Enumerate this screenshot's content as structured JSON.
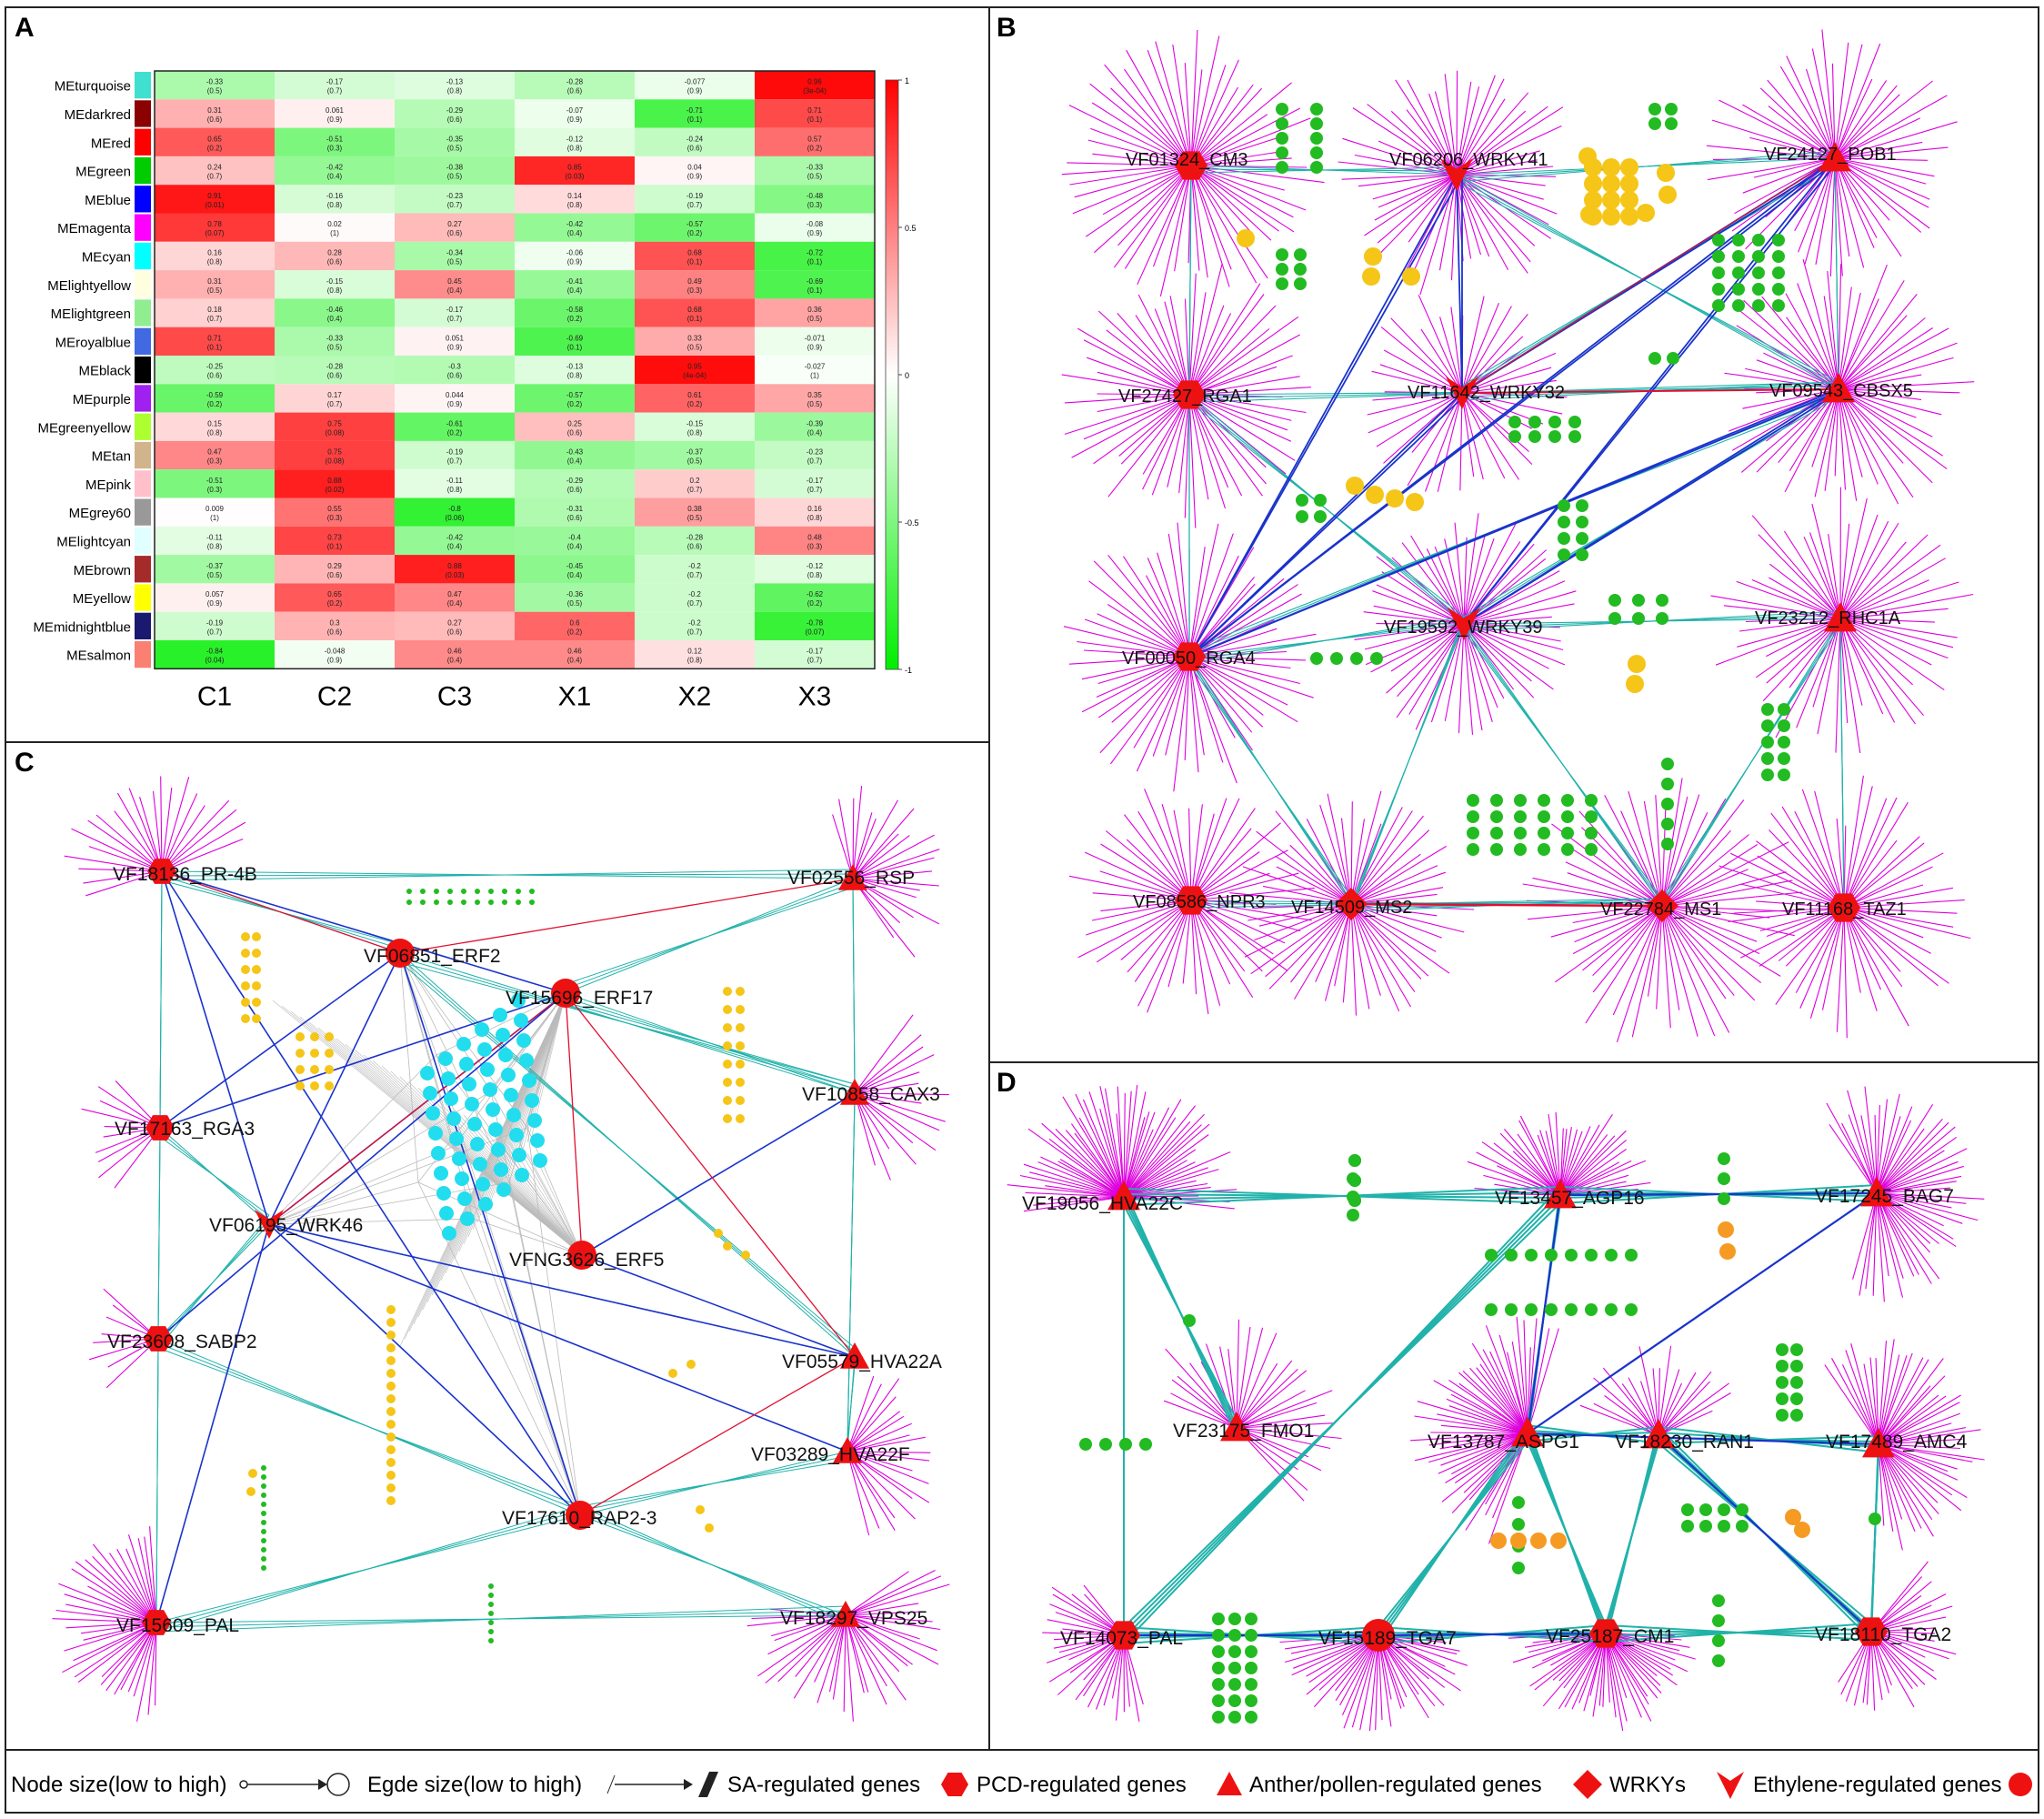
{
  "panels": {
    "A": {
      "letter": "A"
    },
    "B": {
      "letter": "B"
    },
    "C": {
      "letter": "C"
    },
    "D": {
      "letter": "D"
    }
  },
  "heatmap": {
    "rows": [
      "MEturquoise",
      "MEdarkred",
      "MEred",
      "MEgreen",
      "MEblue",
      "MEmagenta",
      "MEcyan",
      "MElightyellow",
      "MElightgreen",
      "MEroyalblue",
      "MEblack",
      "MEpurple",
      "MEgreenyellow",
      "MEtan",
      "MEpink",
      "MEgrey60",
      "MElightcyan",
      "MEbrown",
      "MEyellow",
      "MEmidnightblue",
      "MEsalmon"
    ],
    "row_colors": [
      "#40e0d0",
      "#8b0000",
      "#ff0000",
      "#00cc00",
      "#0000ff",
      "#ff00ff",
      "#00ffff",
      "#ffffe0",
      "#90ee90",
      "#4169e1",
      "#000000",
      "#a020f0",
      "#adff2f",
      "#d2b48c",
      "#ffc0cb",
      "#999999",
      "#e0ffff",
      "#a52a2a",
      "#ffff00",
      "#191970",
      "#fa8072"
    ],
    "columns": [
      "C1",
      "C2",
      "C3",
      "X1",
      "X2",
      "X3"
    ],
    "values": [
      [
        -0.33,
        -0.17,
        -0.13,
        -0.28,
        -0.077,
        0.96
      ],
      [
        0.31,
        0.061,
        -0.29,
        -0.07,
        -0.71,
        0.71
      ],
      [
        0.65,
        -0.51,
        -0.35,
        -0.12,
        -0.24,
        0.57
      ],
      [
        0.24,
        -0.42,
        -0.38,
        0.85,
        0.04,
        -0.33
      ],
      [
        0.91,
        -0.16,
        -0.23,
        0.14,
        -0.19,
        -0.48
      ],
      [
        0.78,
        0.02,
        0.27,
        -0.42,
        -0.57,
        -0.08
      ],
      [
        0.16,
        0.28,
        -0.34,
        -0.06,
        0.68,
        -0.72
      ],
      [
        0.31,
        -0.15,
        0.45,
        -0.41,
        0.49,
        -0.69
      ],
      [
        0.18,
        -0.46,
        -0.17,
        -0.58,
        0.68,
        0.36
      ],
      [
        0.71,
        -0.33,
        0.051,
        -0.69,
        0.33,
        -0.071
      ],
      [
        -0.25,
        -0.28,
        -0.3,
        -0.13,
        0.95,
        -0.027
      ],
      [
        -0.59,
        0.17,
        0.044,
        -0.57,
        0.61,
        0.35
      ],
      [
        0.15,
        0.75,
        -0.61,
        0.25,
        -0.15,
        -0.39
      ],
      [
        0.47,
        0.75,
        -0.19,
        -0.43,
        -0.37,
        -0.23
      ],
      [
        -0.51,
        0.88,
        -0.11,
        -0.29,
        0.2,
        -0.17
      ],
      [
        0.009,
        0.55,
        -0.8,
        -0.31,
        0.38,
        0.16
      ],
      [
        -0.11,
        0.73,
        -0.42,
        -0.4,
        -0.28,
        0.48
      ],
      [
        -0.37,
        0.29,
        0.88,
        -0.45,
        -0.2,
        -0.12
      ],
      [
        0.057,
        0.65,
        0.47,
        -0.36,
        -0.2,
        -0.62
      ],
      [
        -0.19,
        0.3,
        0.27,
        0.6,
        -0.2,
        -0.78
      ],
      [
        -0.84,
        -0.048,
        0.46,
        0.46,
        0.12,
        -0.17
      ]
    ],
    "pvalues": [
      [
        "(0.5)",
        "(0.7)",
        "(0.8)",
        "(0.6)",
        "(0.9)",
        "(3e-04)"
      ],
      [
        "(0.6)",
        "(0.9)",
        "(0.6)",
        "(0.9)",
        "(0.1)",
        "(0.1)"
      ],
      [
        "(0.2)",
        "(0.3)",
        "(0.5)",
        "(0.8)",
        "(0.6)",
        "(0.2)"
      ],
      [
        "(0.7)",
        "(0.4)",
        "(0.5)",
        "(0.03)",
        "(0.9)",
        "(0.5)"
      ],
      [
        "(0.01)",
        "(0.8)",
        "(0.7)",
        "(0.8)",
        "(0.7)",
        "(0.3)"
      ],
      [
        "(0.07)",
        "(1)",
        "(0.6)",
        "(0.4)",
        "(0.2)",
        "(0.9)"
      ],
      [
        "(0.8)",
        "(0.6)",
        "(0.5)",
        "(0.9)",
        "(0.1)",
        "(0.1)"
      ],
      [
        "(0.5)",
        "(0.8)",
        "(0.4)",
        "(0.4)",
        "(0.3)",
        "(0.1)"
      ],
      [
        "(0.7)",
        "(0.4)",
        "(0.7)",
        "(0.2)",
        "(0.1)",
        "(0.5)"
      ],
      [
        "(0.1)",
        "(0.5)",
        "(0.9)",
        "(0.1)",
        "(0.5)",
        "(0.9)"
      ],
      [
        "(0.6)",
        "(0.6)",
        "(0.6)",
        "(0.8)",
        "(4e-04)",
        "(1)"
      ],
      [
        "(0.2)",
        "(0.7)",
        "(0.9)",
        "(0.2)",
        "(0.2)",
        "(0.5)"
      ],
      [
        "(0.8)",
        "(0.08)",
        "(0.2)",
        "(0.6)",
        "(0.8)",
        "(0.4)"
      ],
      [
        "(0.3)",
        "(0.08)",
        "(0.7)",
        "(0.4)",
        "(0.5)",
        "(0.7)"
      ],
      [
        "(0.3)",
        "(0.02)",
        "(0.8)",
        "(0.6)",
        "(0.7)",
        "(0.7)"
      ],
      [
        "(1)",
        "(0.3)",
        "(0.06)",
        "(0.6)",
        "(0.5)",
        "(0.8)"
      ],
      [
        "(0.8)",
        "(0.1)",
        "(0.4)",
        "(0.4)",
        "(0.6)",
        "(0.3)"
      ],
      [
        "(0.5)",
        "(0.6)",
        "(0.03)",
        "(0.4)",
        "(0.7)",
        "(0.8)"
      ],
      [
        "(0.9)",
        "(0.2)",
        "(0.4)",
        "(0.5)",
        "(0.7)",
        "(0.2)"
      ],
      [
        "(0.7)",
        "(0.6)",
        "(0.6)",
        "(0.2)",
        "(0.7)",
        "(0.07)"
      ],
      [
        "(0.04)",
        "(0.9)",
        "(0.4)",
        "(0.4)",
        "(0.8)",
        "(0.7)"
      ]
    ],
    "legend_ticks": [
      "1",
      "0.5",
      "0",
      "-0.5",
      "-1"
    ],
    "colors": {
      "high": "#ff0000",
      "mid": "#ffffff",
      "low": "#00ee00"
    }
  },
  "networks": {
    "B": {
      "hubs": [
        {
          "label": "VF01324_CM3",
          "shape": "hexagon"
        },
        {
          "label": "VF06206_WRKY41",
          "shape": "vee"
        },
        {
          "label": "VF24127_POB1",
          "shape": "triangle"
        },
        {
          "label": "VF27427_RGA1",
          "shape": "hexagon"
        },
        {
          "label": "VF11642_WRKY32",
          "shape": "vee"
        },
        {
          "label": "VF09543_CBSX5",
          "shape": "triangle"
        },
        {
          "label": "VF00050_RGA4",
          "shape": "hexagon"
        },
        {
          "label": "VF19592_WRKY39",
          "shape": "vee"
        },
        {
          "label": "VF23212_RHC1A",
          "shape": "triangle"
        },
        {
          "label": "VF08586_NPR3",
          "shape": "hexagon"
        },
        {
          "label": "VF14509_MS2",
          "shape": "diamond"
        },
        {
          "label": "VF22784_MS1",
          "shape": "diamond"
        },
        {
          "label": "VF11168_TAZ1",
          "shape": "hexagon"
        }
      ]
    },
    "C": {
      "hubs": [
        {
          "label": "VF18136_PR-4B",
          "shape": "hexagon"
        },
        {
          "label": "VF02556_RSP",
          "shape": "triangle"
        },
        {
          "label": "VF06851_ERF2",
          "shape": "circle"
        },
        {
          "label": "VF15696_ERF17",
          "shape": "circle"
        },
        {
          "label": "VF10858_CAX3",
          "shape": "triangle"
        },
        {
          "label": "VF17163_RGA3",
          "shape": "hexagon"
        },
        {
          "label": "VF06195_WRK46",
          "shape": "vee"
        },
        {
          "label": "VFNG3626_ERF5",
          "shape": "circle"
        },
        {
          "label": "VF23608_SABP2",
          "shape": "hexagon"
        },
        {
          "label": "VF05579_HVA22A",
          "shape": "triangle"
        },
        {
          "label": "VF03289_HVA22F",
          "shape": "triangle"
        },
        {
          "label": "VF17610_RAP2-3",
          "shape": "circle"
        },
        {
          "label": "VF15609_PAL",
          "shape": "hexagon"
        },
        {
          "label": "VF18297_VPS25",
          "shape": "triangle"
        }
      ]
    },
    "D": {
      "hubs": [
        {
          "label": "VF19056_HVA22C",
          "shape": "triangle"
        },
        {
          "label": "VF13457_AGP16",
          "shape": "triangle"
        },
        {
          "label": "VF17245_BAG7",
          "shape": "triangle"
        },
        {
          "label": "VF23175_FMO1",
          "shape": "triangle"
        },
        {
          "label": "VF13787_ASPG1",
          "shape": "triangle"
        },
        {
          "label": "VF18230_RAN1",
          "shape": "triangle"
        },
        {
          "label": "VF17489_AMC4",
          "shape": "triangle"
        },
        {
          "label": "VF14073_PAL",
          "shape": "hexagon"
        },
        {
          "label": "VF15189_TGA7",
          "shape": "circle"
        },
        {
          "label": "VF25187_CM1",
          "shape": "hexagon"
        },
        {
          "label": "VF18110_TGA2",
          "shape": "hexagon"
        }
      ]
    }
  },
  "legend": {
    "node_size": "Node size(low to high)",
    "edge_size": "Egde size(low to high)",
    "sa": "SA-regulated genes",
    "pcd": "PCD-regulated genes",
    "anther": "Anther/pollen-regulated genes",
    "wrky": "WRKYs",
    "ethylene": "Ethylene-regulated genes"
  },
  "palette": {
    "hub": "#ee1111",
    "leaf_edge": "#dd00dd",
    "green_node": "#22bb22",
    "yellow_node": "#f5c518",
    "orange_node": "#f59a23",
    "cyan_node": "#22ddee",
    "teal_edge": "#20b2aa",
    "blue_edge": "#1a33cc",
    "red_edge": "#e01030",
    "gray_edge": "#bbbbbb"
  }
}
